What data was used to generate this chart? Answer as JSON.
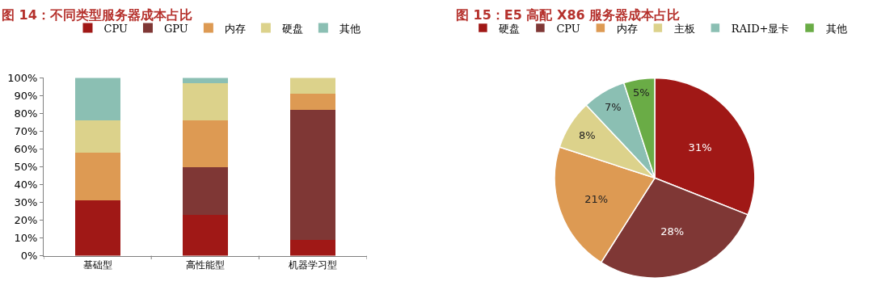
{
  "chart_data": [
    {
      "type": "bar",
      "title": "图 14：不同类型服务器成本占比",
      "stacked": true,
      "categories": [
        "基础型",
        "高性能型",
        "机器学习型"
      ],
      "series": [
        {
          "name": "CPU",
          "color": "#a01816",
          "values": [
            31,
            23,
            9
          ]
        },
        {
          "name": "GPU",
          "color": "#7f3735",
          "values": [
            0,
            27,
            73
          ]
        },
        {
          "name": "内存",
          "color": "#dd9a53",
          "values": [
            27,
            26,
            9
          ]
        },
        {
          "name": "硬盘",
          "color": "#dcd28b",
          "values": [
            18,
            21,
            9
          ]
        },
        {
          "name": "其他",
          "color": "#8bbfb3",
          "values": [
            24,
            3,
            0
          ]
        }
      ],
      "ylim": [
        0,
        100
      ],
      "yticks": [
        {
          "value": 0,
          "label": "0%"
        },
        {
          "value": 10,
          "label": "10%"
        },
        {
          "value": 20,
          "label": "20%"
        },
        {
          "value": 30,
          "label": "30%"
        },
        {
          "value": 40,
          "label": "40%"
        },
        {
          "value": 50,
          "label": "50%"
        },
        {
          "value": 60,
          "label": "60%"
        },
        {
          "value": 70,
          "label": "70%"
        },
        {
          "value": 80,
          "label": "80%"
        },
        {
          "value": 90,
          "label": "90%"
        },
        {
          "value": 100,
          "label": "100%"
        }
      ],
      "legend": "top"
    },
    {
      "type": "pie",
      "title": "图 15：E5 高配 X86 服务器成本占比",
      "categories": [
        "硬盘",
        "CPU",
        "内存",
        "主板",
        "RAID+显卡",
        "其他"
      ],
      "values": [
        31,
        28,
        21,
        8,
        7,
        5
      ],
      "value_labels": [
        "31%",
        "28%",
        "21%",
        "8%",
        "7%",
        "5%"
      ],
      "colors": [
        "#a01816",
        "#7f3735",
        "#dd9a53",
        "#dcd28b",
        "#8bbfb3",
        "#6aac46"
      ],
      "legend": "top"
    }
  ]
}
